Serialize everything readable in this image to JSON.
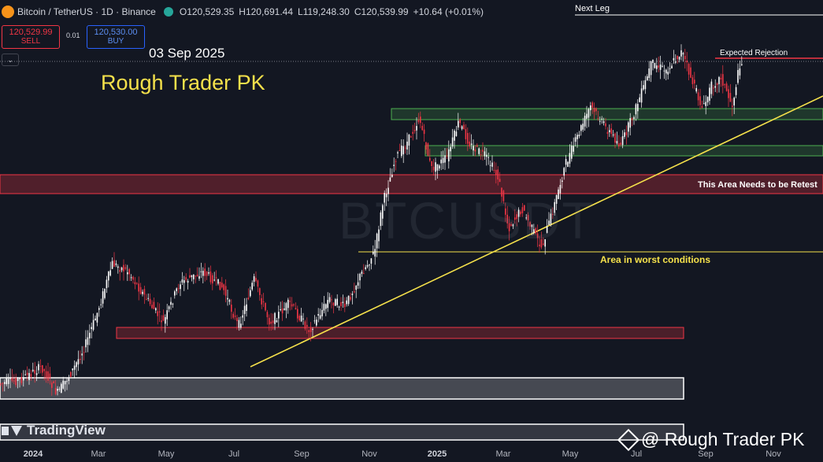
{
  "header": {
    "symbol": "Bitcoin / TetherUS · 1D · Binance",
    "ohlc": [
      {
        "label": "O",
        "value": "120,529.35"
      },
      {
        "label": "H",
        "value": "120,691.44"
      },
      {
        "label": "L",
        "value": "119,248.30"
      },
      {
        "label": "C",
        "value": "120,539.99"
      }
    ],
    "change": "+10.64 (+0.01%)"
  },
  "trade": {
    "sell_price": "120,529.99",
    "sell_label": "SELL",
    "spread": "0.01",
    "buy_price": "120,530.00",
    "buy_label": "BUY",
    "collapse_icon": "chevron-down-icon"
  },
  "annotations": {
    "date": "03 Sep 2025",
    "brand": "Rough Trader PK",
    "next_leg": "Next Leg",
    "expected_rejection": "Expected Rejection",
    "retest": "This Area Needs to be Retest",
    "worst": "Area in worst conditions"
  },
  "watermark": "BTCUSDT",
  "tradingview_logo": "TradingView",
  "binance_credit": "@ Rough Trader PK",
  "x_axis": [
    "2024",
    "Mar",
    "May",
    "Jul",
    "Sep",
    "Nov",
    "2025",
    "Mar",
    "May",
    "Jul",
    "Sep",
    "Nov"
  ],
  "colors": {
    "background": "#131722",
    "up": "#ffffff",
    "down": "#f23645",
    "trendline": "#f5e14b",
    "demand_zone": "#4caf50",
    "supply_zone": "#f23645",
    "neutral_zone": "#ffffff"
  }
}
